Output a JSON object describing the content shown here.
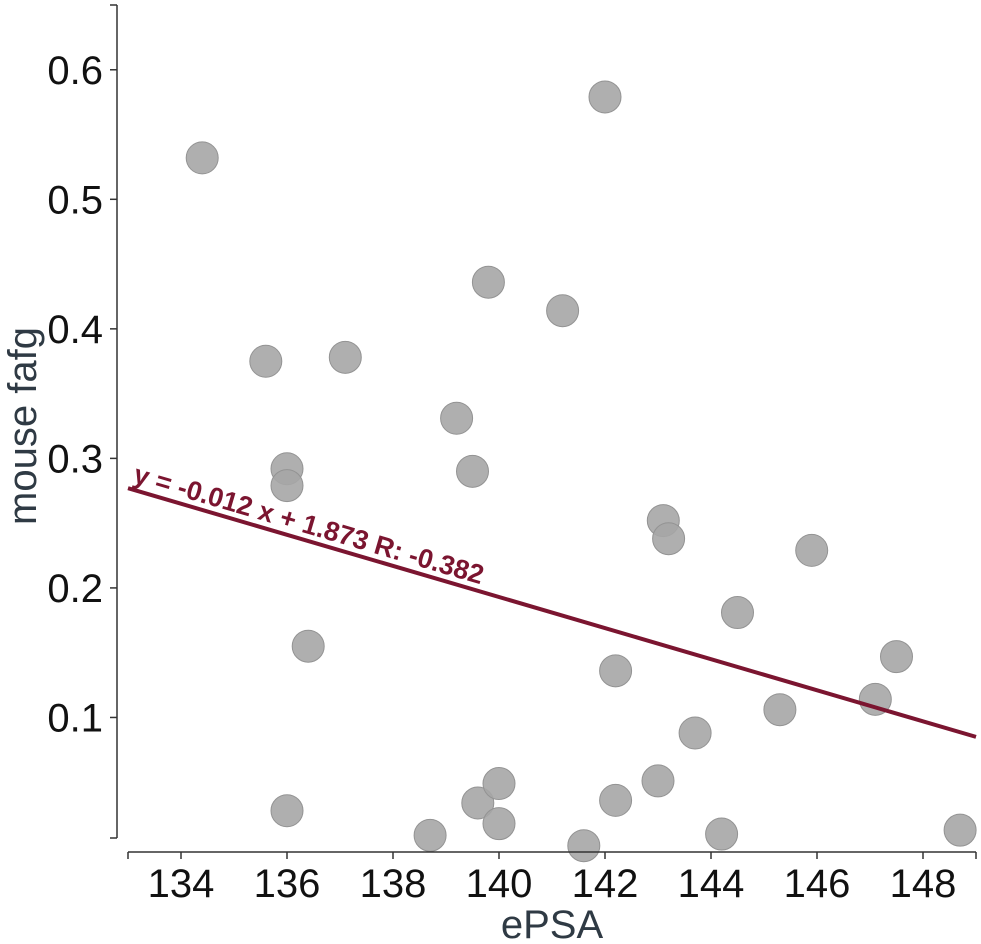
{
  "chart_data": {
    "type": "scatter",
    "title": "",
    "xlabel": "ePSA",
    "ylabel": "mouse fafg",
    "xlim": [
      133,
      149
    ],
    "ylim": [
      0,
      0.65
    ],
    "xticks": [
      134,
      136,
      138,
      140,
      142,
      144,
      146,
      148
    ],
    "yticks": [
      0.1,
      0.2,
      0.3,
      0.4,
      0.5,
      0.6
    ],
    "xtick_labels": [
      "134",
      "136",
      "138",
      "140",
      "142",
      "144",
      "146",
      "148"
    ],
    "ytick_labels": [
      "0.1",
      "0.2",
      "0.3",
      "0.4",
      "0.5",
      "0.6"
    ],
    "grid": false,
    "points": [
      {
        "x": 134.4,
        "y": 0.532
      },
      {
        "x": 135.6,
        "y": 0.375
      },
      {
        "x": 136.0,
        "y": 0.292
      },
      {
        "x": 136.0,
        "y": 0.279
      },
      {
        "x": 136.0,
        "y": 0.028
      },
      {
        "x": 136.4,
        "y": 0.155
      },
      {
        "x": 137.1,
        "y": 0.378
      },
      {
        "x": 138.7,
        "y": 0.009
      },
      {
        "x": 139.2,
        "y": 0.331
      },
      {
        "x": 139.5,
        "y": 0.29
      },
      {
        "x": 139.6,
        "y": 0.034
      },
      {
        "x": 139.8,
        "y": 0.436
      },
      {
        "x": 140.0,
        "y": 0.049
      },
      {
        "x": 140.0,
        "y": 0.018
      },
      {
        "x": 141.2,
        "y": 0.414
      },
      {
        "x": 141.6,
        "y": 0.001
      },
      {
        "x": 142.0,
        "y": 0.579
      },
      {
        "x": 142.2,
        "y": 0.136
      },
      {
        "x": 142.2,
        "y": 0.036
      },
      {
        "x": 143.0,
        "y": 0.051
      },
      {
        "x": 143.1,
        "y": 0.252
      },
      {
        "x": 143.2,
        "y": 0.238
      },
      {
        "x": 143.7,
        "y": 0.088
      },
      {
        "x": 144.2,
        "y": 0.01
      },
      {
        "x": 144.5,
        "y": 0.181
      },
      {
        "x": 145.3,
        "y": 0.106
      },
      {
        "x": 145.9,
        "y": 0.229
      },
      {
        "x": 147.1,
        "y": 0.114
      },
      {
        "x": 147.5,
        "y": 0.147
      },
      {
        "x": 148.7,
        "y": 0.013
      }
    ],
    "regression": {
      "slope": -0.012,
      "intercept": 1.873,
      "r": -0.382,
      "x_range": [
        133,
        149
      ]
    },
    "annotation": "y = -0.012 x + 1.873 R: -0.382",
    "colors": {
      "point": "#a6a6a6",
      "point_edge": "#939393",
      "line": "#7b1530",
      "axis": "#333333"
    }
  }
}
